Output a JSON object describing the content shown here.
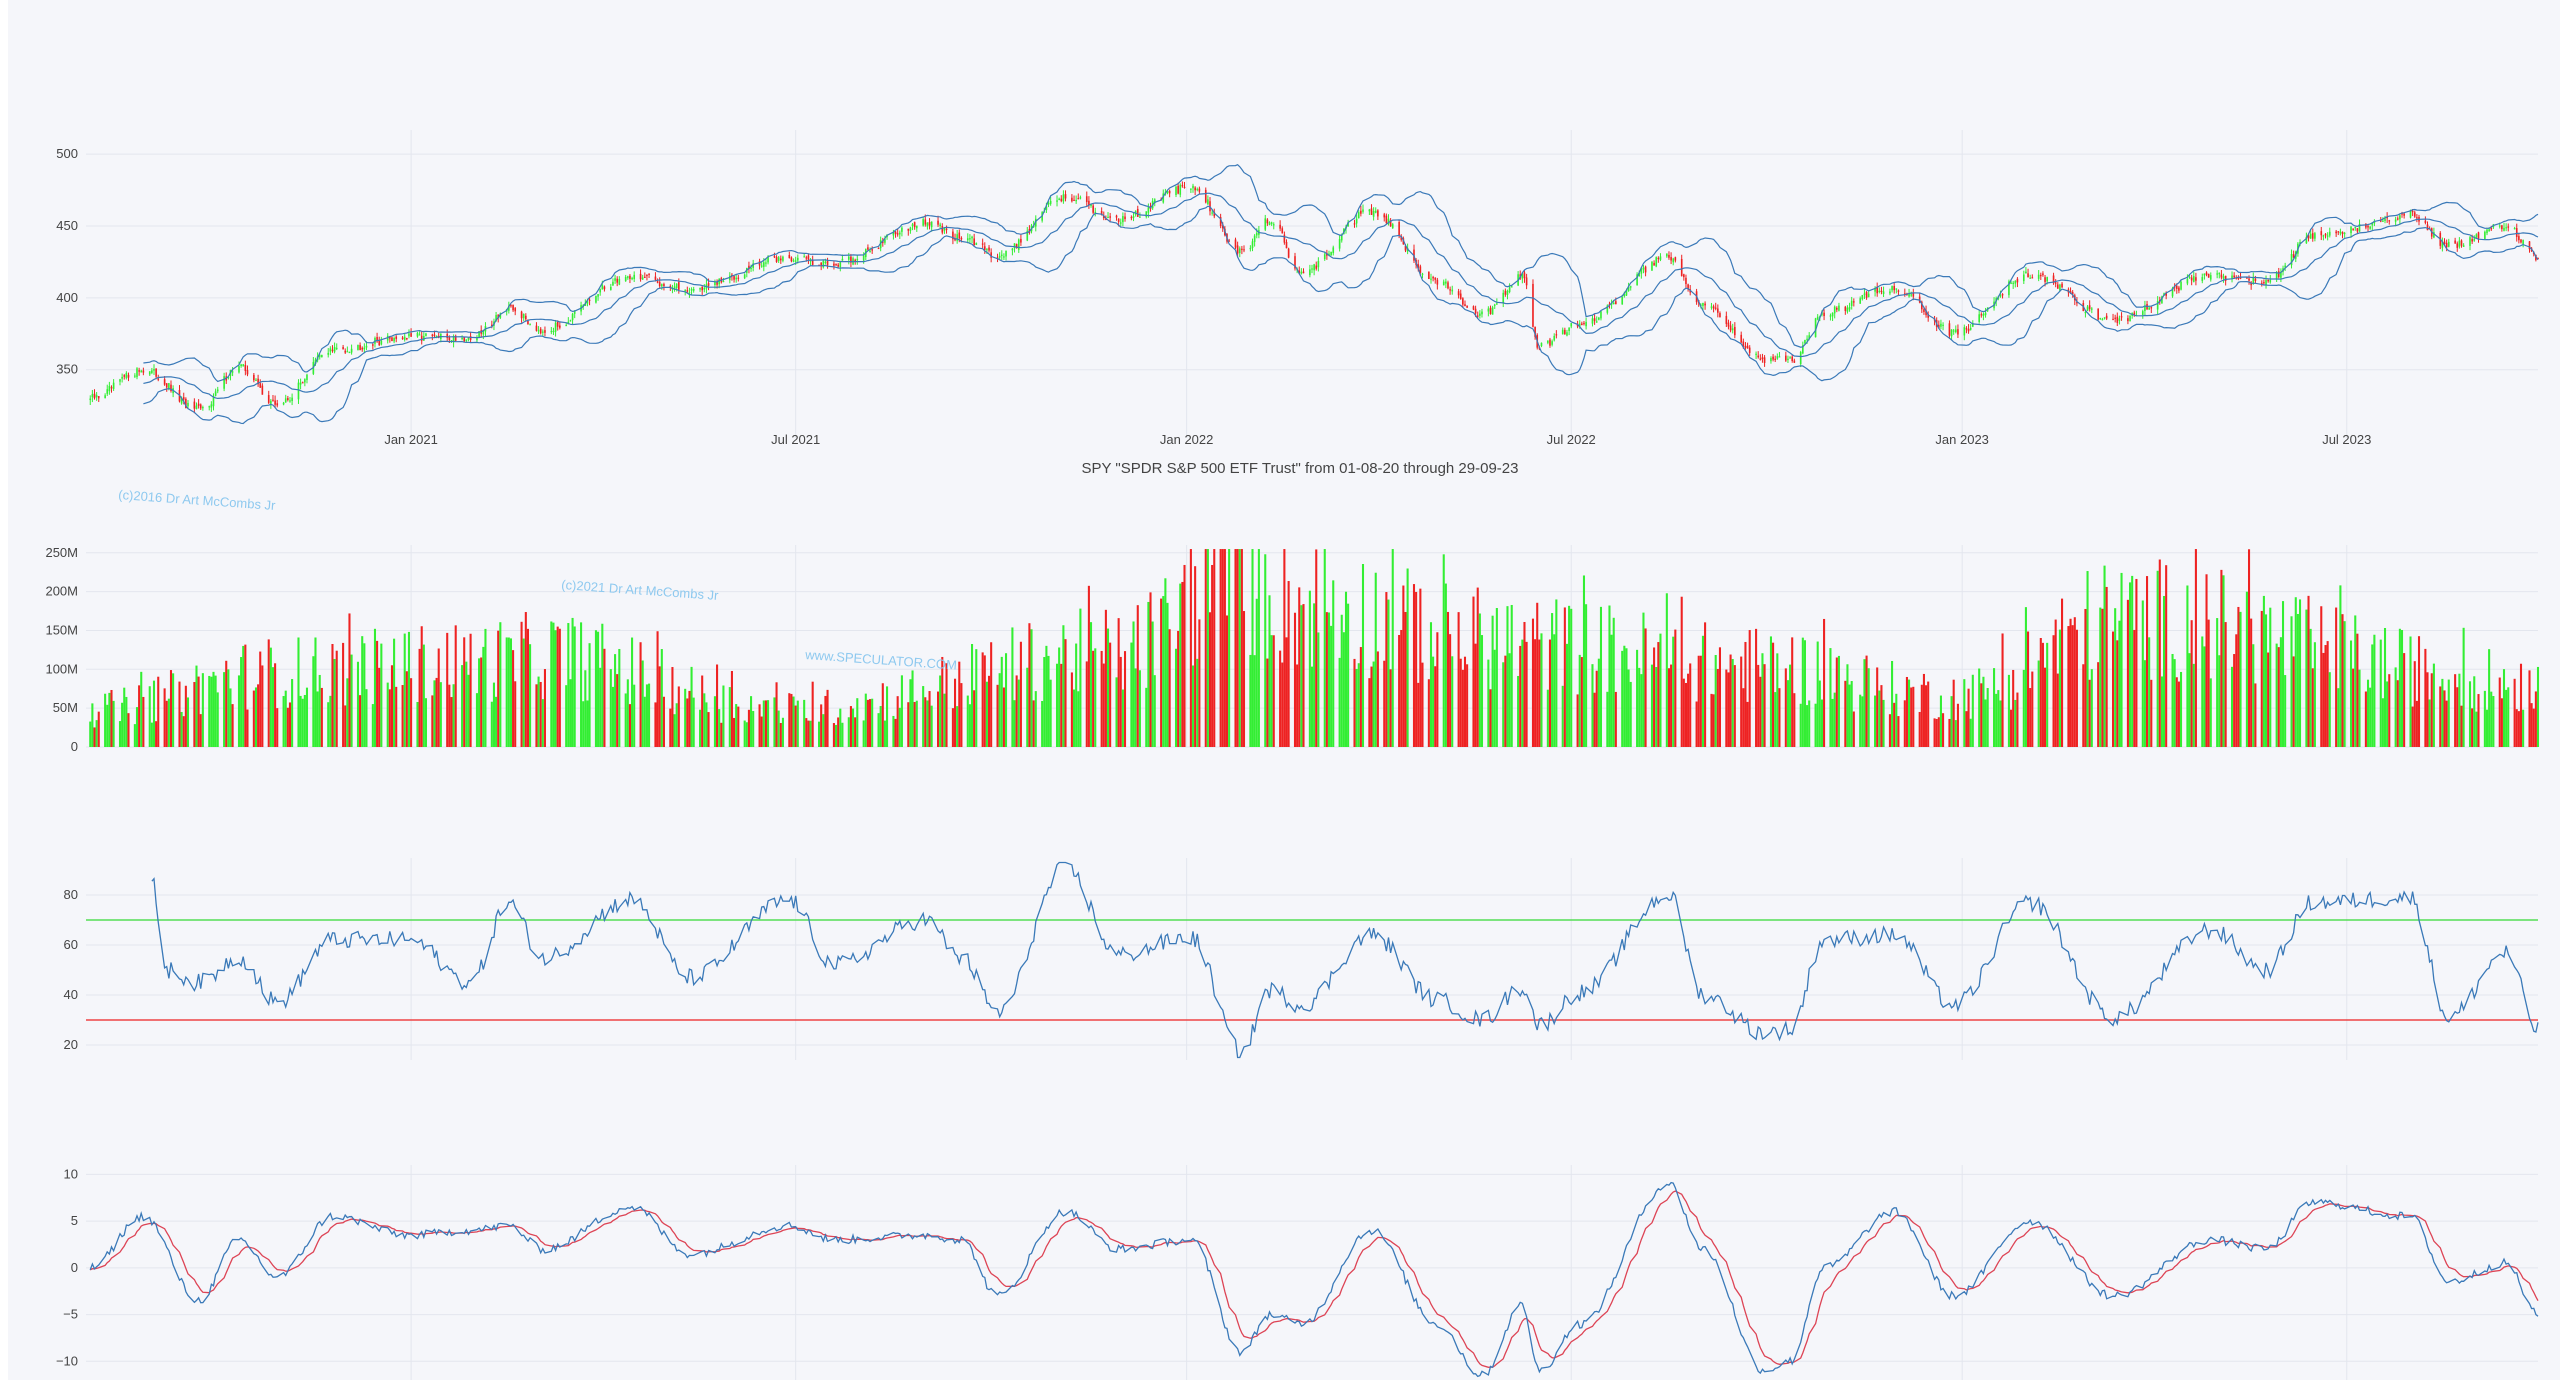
{
  "chart_data": [
    {
      "id": "price",
      "type": "candlestick",
      "title": "SPY \"SPDR S&P 500 ETF Trust\" from 01-08-20 through 29-09-23",
      "xlabel": "",
      "ylabel": "",
      "x_range": [
        "2020-08-01",
        "2023-09-29"
      ],
      "ylim": [
        315,
        505
      ],
      "y_ticks": [
        350,
        400,
        450,
        500
      ],
      "x_ticks": [
        {
          "date": "2021-01-01",
          "label": "Jan 2021"
        },
        {
          "date": "2021-07-01",
          "label": "Jul 2021"
        },
        {
          "date": "2022-01-01",
          "label": "Jan 2022"
        },
        {
          "date": "2022-07-01",
          "label": "Jul 2022"
        },
        {
          "date": "2023-01-01",
          "label": "Jan 2023"
        },
        {
          "date": "2023-07-01",
          "label": "Jul 2023"
        }
      ],
      "grid": true,
      "legend": "none",
      "overlays": [
        "Bollinger upper band",
        "moving average",
        "Bollinger lower band"
      ],
      "colors": {
        "up": "#33ee33",
        "down": "#ee2222",
        "bands": "#3a79b8"
      },
      "close_keypoints": [
        [
          "2020-08-03",
          330
        ],
        [
          "2020-08-28",
          350
        ],
        [
          "2020-09-23",
          322
        ],
        [
          "2020-10-12",
          352
        ],
        [
          "2020-10-30",
          326
        ],
        [
          "2020-11-25",
          364
        ],
        [
          "2020-12-31",
          373
        ],
        [
          "2021-01-29",
          372
        ],
        [
          "2021-02-16",
          392
        ],
        [
          "2021-03-04",
          378
        ],
        [
          "2021-04-15",
          415
        ],
        [
          "2021-05-12",
          406
        ],
        [
          "2021-06-28",
          428
        ],
        [
          "2021-07-19",
          424
        ],
        [
          "2021-08-31",
          452
        ],
        [
          "2021-09-17",
          442
        ],
        [
          "2021-10-04",
          430
        ],
        [
          "2021-11-05",
          470
        ],
        [
          "2021-11-30",
          455
        ],
        [
          "2022-01-03",
          477
        ],
        [
          "2022-01-27",
          432
        ],
        [
          "2022-02-09",
          455
        ],
        [
          "2022-02-24",
          418
        ],
        [
          "2022-03-29",
          460
        ],
        [
          "2022-04-29",
          412
        ],
        [
          "2022-05-20",
          389
        ],
        [
          "2022-06-08",
          415
        ],
        [
          "2022-06-16",
          366
        ],
        [
          "2022-07-05",
          382
        ],
        [
          "2022-08-16",
          428
        ],
        [
          "2022-09-01",
          396
        ],
        [
          "2022-09-30",
          357
        ],
        [
          "2022-10-12",
          356
        ],
        [
          "2022-10-28",
          390
        ],
        [
          "2022-11-30",
          407
        ],
        [
          "2022-12-28",
          376
        ],
        [
          "2023-02-02",
          416
        ],
        [
          "2023-03-13",
          385
        ],
        [
          "2023-04-28",
          415
        ],
        [
          "2023-05-24",
          411
        ],
        [
          "2023-06-15",
          442
        ],
        [
          "2023-07-31",
          458
        ],
        [
          "2023-08-18",
          436
        ],
        [
          "2023-09-14",
          450
        ],
        [
          "2023-09-29",
          428
        ]
      ]
    },
    {
      "id": "volume",
      "type": "bar",
      "title": "",
      "xlabel": "",
      "ylabel": "",
      "x_range": [
        "2020-08-01",
        "2023-09-29"
      ],
      "ylim": [
        0,
        260000000
      ],
      "y_ticks": [
        {
          "value": 0,
          "label": "0"
        },
        {
          "value": 50000000,
          "label": "50M"
        },
        {
          "value": 100000000,
          "label": "100M"
        },
        {
          "value": 150000000,
          "label": "150M"
        },
        {
          "value": 200000000,
          "label": "200M"
        },
        {
          "value": 250000000,
          "label": "250M"
        }
      ],
      "grid": true,
      "colors": {
        "up": "#33ee33",
        "down": "#ee2222"
      },
      "volume_keypoints": [
        [
          "2020-08-03",
          55000000
        ],
        [
          "2020-10-30",
          110000000
        ],
        [
          "2021-01-29",
          125000000
        ],
        [
          "2021-03-04",
          135000000
        ],
        [
          "2021-06-28",
          55000000
        ],
        [
          "2021-11-30",
          140000000
        ],
        [
          "2022-01-24",
          252000000
        ],
        [
          "2022-02-24",
          210000000
        ],
        [
          "2022-05-20",
          160000000
        ],
        [
          "2022-06-16",
          150000000
        ],
        [
          "2022-09-30",
          120000000
        ],
        [
          "2022-12-28",
          75000000
        ],
        [
          "2023-03-17",
          190000000
        ],
        [
          "2023-09-29",
          95000000
        ]
      ]
    },
    {
      "id": "rsi",
      "type": "line",
      "title": "",
      "xlabel": "",
      "ylabel": "",
      "x_range": [
        "2020-08-01",
        "2023-09-29"
      ],
      "ylim": [
        14,
        94
      ],
      "y_ticks": [
        20,
        40,
        60,
        80
      ],
      "grid": true,
      "thresholds": [
        {
          "value": 70,
          "color": "#55dd55"
        },
        {
          "value": 30,
          "color": "#ee4444"
        }
      ],
      "colors": {
        "line": "#3a79b8"
      },
      "points": [
        [
          "2020-09-01",
          85
        ],
        [
          "2020-09-08",
          50
        ],
        [
          "2020-09-23",
          45
        ],
        [
          "2020-10-12",
          55
        ],
        [
          "2020-10-30",
          37
        ],
        [
          "2020-11-25",
          62
        ],
        [
          "2020-12-31",
          62
        ],
        [
          "2021-01-29",
          45
        ],
        [
          "2021-02-16",
          77
        ],
        [
          "2021-03-04",
          55
        ],
        [
          "2021-04-15",
          78
        ],
        [
          "2021-05-12",
          47
        ],
        [
          "2021-06-28",
          78
        ],
        [
          "2021-07-19",
          52
        ],
        [
          "2021-08-31",
          70
        ],
        [
          "2021-09-17",
          55
        ],
        [
          "2021-10-04",
          33
        ],
        [
          "2021-11-05",
          91
        ],
        [
          "2021-11-30",
          56
        ],
        [
          "2022-01-03",
          63
        ],
        [
          "2022-01-27",
          17
        ],
        [
          "2022-02-09",
          42
        ],
        [
          "2022-02-24",
          36
        ],
        [
          "2022-03-29",
          64
        ],
        [
          "2022-04-29",
          38
        ],
        [
          "2022-05-20",
          30
        ],
        [
          "2022-06-08",
          43
        ],
        [
          "2022-06-16",
          28
        ],
        [
          "2022-07-05",
          41
        ],
        [
          "2022-08-16",
          80
        ],
        [
          "2022-09-01",
          40
        ],
        [
          "2022-09-30",
          25
        ],
        [
          "2022-10-12",
          26
        ],
        [
          "2022-10-28",
          62
        ],
        [
          "2022-11-30",
          64
        ],
        [
          "2022-12-28",
          36
        ],
        [
          "2023-02-02",
          77
        ],
        [
          "2023-03-13",
          31
        ],
        [
          "2023-04-28",
          66
        ],
        [
          "2023-05-24",
          50
        ],
        [
          "2023-06-15",
          77
        ],
        [
          "2023-07-31",
          79
        ],
        [
          "2023-08-18",
          31
        ],
        [
          "2023-09-14",
          57
        ],
        [
          "2023-09-29",
          26
        ]
      ]
    },
    {
      "id": "macd",
      "type": "line",
      "title": "",
      "xlabel": "",
      "ylabel": "",
      "x_range": [
        "2020-08-01",
        "2023-09-29"
      ],
      "ylim": [
        -12,
        11
      ],
      "y_ticks": [
        {
          "value": -10,
          "label": "−10"
        },
        {
          "value": -5,
          "label": "−5"
        },
        {
          "value": 0,
          "label": "0"
        },
        {
          "value": 5,
          "label": "5"
        },
        {
          "value": 10,
          "label": "10"
        }
      ],
      "grid": true,
      "colors": {
        "macd": "#3a79b8",
        "signal": "#dd4455"
      },
      "points": [
        [
          "2020-08-03",
          0
        ],
        [
          "2020-08-28",
          5.5
        ],
        [
          "2020-09-23",
          -3.5
        ],
        [
          "2020-10-12",
          3
        ],
        [
          "2020-10-30",
          -1
        ],
        [
          "2020-11-25",
          5.5
        ],
        [
          "2020-12-31",
          3.5
        ],
        [
          "2021-01-29",
          4
        ],
        [
          "2021-02-16",
          4.5
        ],
        [
          "2021-03-04",
          2
        ],
        [
          "2021-04-15",
          6.5
        ],
        [
          "2021-05-12",
          1.5
        ],
        [
          "2021-06-28",
          4.5
        ],
        [
          "2021-07-19",
          3
        ],
        [
          "2021-08-31",
          3.5
        ],
        [
          "2021-09-17",
          3
        ],
        [
          "2021-10-04",
          -3
        ],
        [
          "2021-11-05",
          6
        ],
        [
          "2021-11-30",
          2
        ],
        [
          "2022-01-03",
          3
        ],
        [
          "2022-01-27",
          -9
        ],
        [
          "2022-02-09",
          -5
        ],
        [
          "2022-02-24",
          -6
        ],
        [
          "2022-03-29",
          4
        ],
        [
          "2022-04-29",
          -6
        ],
        [
          "2022-05-20",
          -11.5
        ],
        [
          "2022-06-08",
          -4
        ],
        [
          "2022-06-16",
          -11
        ],
        [
          "2022-07-05",
          -6
        ],
        [
          "2022-08-16",
          9
        ],
        [
          "2022-09-01",
          2
        ],
        [
          "2022-09-30",
          -11
        ],
        [
          "2022-10-12",
          -10
        ],
        [
          "2022-10-28",
          0
        ],
        [
          "2022-11-30",
          6
        ],
        [
          "2022-12-28",
          -3
        ],
        [
          "2023-02-02",
          5
        ],
        [
          "2023-03-13",
          -3
        ],
        [
          "2023-04-28",
          3
        ],
        [
          "2023-05-24",
          2
        ],
        [
          "2023-06-15",
          7
        ],
        [
          "2023-07-31",
          5.5
        ],
        [
          "2023-08-18",
          -1.5
        ],
        [
          "2023-09-14",
          0.5
        ],
        [
          "2023-09-29",
          -5
        ]
      ]
    }
  ],
  "watermarks": [
    "(c)2016 Dr Art McCombs Jr",
    "(c)2021 Dr Art McCombs Jr",
    "www.SPECULATOR.COM"
  ]
}
